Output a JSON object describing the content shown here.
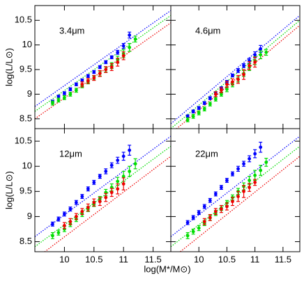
{
  "chart_data": [
    {
      "type": "scatter",
      "title": "3.4μm",
      "y_label": "log(L/L⊙)",
      "xlim": [
        9.5,
        11.8
      ],
      "ylim": [
        8.3,
        10.8
      ],
      "xticks": [
        10.0,
        10.5,
        11.0,
        11.5
      ],
      "yticks": [
        8.5,
        9.0,
        9.5,
        10.0,
        10.5
      ],
      "series": [
        {
          "color": "#0000ff",
          "x": [
            9.8,
            9.9,
            10.0,
            10.1,
            10.2,
            10.3,
            10.4,
            10.5,
            10.6,
            10.7,
            10.8,
            10.9,
            11.0,
            11.1
          ],
          "values": [
            8.85,
            8.95,
            9.02,
            9.1,
            9.2,
            9.28,
            9.37,
            9.45,
            9.55,
            9.65,
            9.75,
            9.85,
            9.98,
            10.2
          ],
          "errors": [
            0.03,
            0.03,
            0.03,
            0.03,
            0.03,
            0.03,
            0.03,
            0.03,
            0.03,
            0.03,
            0.03,
            0.04,
            0.05,
            0.06
          ]
        },
        {
          "color": "#00dd00",
          "x": [
            9.8,
            9.9,
            10.0,
            10.1,
            10.2,
            10.3,
            10.4,
            10.5,
            10.6,
            10.7,
            10.8,
            10.9,
            11.0,
            11.1,
            11.2
          ],
          "values": [
            8.82,
            8.88,
            8.93,
            9.0,
            9.08,
            9.17,
            9.25,
            9.33,
            9.42,
            9.5,
            9.58,
            9.7,
            9.82,
            9.95,
            10.12
          ],
          "errors": [
            0.04,
            0.04,
            0.04,
            0.04,
            0.04,
            0.04,
            0.04,
            0.04,
            0.05,
            0.05,
            0.06,
            0.07,
            0.08,
            0.08,
            0.06
          ]
        },
        {
          "color": "#ee0000",
          "x": [
            10.3,
            10.4,
            10.5,
            10.6,
            10.7,
            10.8,
            10.9,
            11.0
          ],
          "values": [
            9.2,
            9.27,
            9.33,
            9.42,
            9.5,
            9.55,
            9.65,
            9.78
          ],
          "errors": [
            0.05,
            0.05,
            0.05,
            0.06,
            0.06,
            0.07,
            0.08,
            0.08
          ]
        }
      ],
      "fits": [
        {
          "color": "#0000ff",
          "x": [
            9.5,
            11.8
          ],
          "values": [
            8.75,
            10.7
          ]
        },
        {
          "color": "#00dd00",
          "x": [
            9.5,
            11.8
          ],
          "values": [
            8.65,
            10.6
          ]
        },
        {
          "color": "#ee0000",
          "x": [
            9.5,
            11.8
          ],
          "values": [
            8.5,
            10.45
          ]
        }
      ]
    },
    {
      "type": "scatter",
      "title": "4.6μm",
      "xlim": [
        9.5,
        11.8
      ],
      "ylim": [
        8.3,
        10.8
      ],
      "xticks": [
        10.0,
        10.5,
        11.0,
        11.5
      ],
      "yticks": [
        8.5,
        9.0,
        9.5,
        10.0,
        10.5
      ],
      "series": [
        {
          "color": "#0000ff",
          "x": [
            9.8,
            9.9,
            10.0,
            10.1,
            10.2,
            10.3,
            10.4,
            10.5,
            10.6,
            10.7,
            10.8,
            10.9,
            11.0,
            11.1
          ],
          "values": [
            8.55,
            8.65,
            8.72,
            8.82,
            8.92,
            9.02,
            9.12,
            9.25,
            9.38,
            9.48,
            9.58,
            9.68,
            9.8,
            9.92
          ],
          "errors": [
            0.03,
            0.03,
            0.03,
            0.03,
            0.03,
            0.03,
            0.03,
            0.03,
            0.03,
            0.04,
            0.04,
            0.05,
            0.06,
            0.07
          ]
        },
        {
          "color": "#00dd00",
          "x": [
            9.8,
            9.9,
            10.0,
            10.1,
            10.2,
            10.3,
            10.4,
            10.5,
            10.6,
            10.7,
            10.8,
            10.9,
            11.0,
            11.1,
            11.2
          ],
          "values": [
            8.48,
            8.55,
            8.62,
            8.7,
            8.8,
            8.9,
            9.0,
            9.1,
            9.2,
            9.3,
            9.42,
            9.55,
            9.68,
            9.8,
            9.85
          ],
          "errors": [
            0.04,
            0.04,
            0.04,
            0.04,
            0.04,
            0.04,
            0.04,
            0.05,
            0.05,
            0.05,
            0.06,
            0.07,
            0.08,
            0.08,
            0.06
          ]
        },
        {
          "color": "#ee0000",
          "x": [
            10.3,
            10.4,
            10.5,
            10.6,
            10.7,
            10.8,
            10.9,
            11.0
          ],
          "values": [
            9.0,
            9.08,
            9.2,
            9.25,
            9.3,
            9.4,
            9.58,
            9.65
          ],
          "errors": [
            0.05,
            0.05,
            0.06,
            0.06,
            0.08,
            0.1,
            0.08,
            0.1
          ]
        }
      ],
      "fits": [
        {
          "color": "#0000ff",
          "x": [
            9.5,
            11.8
          ],
          "values": [
            8.4,
            10.6
          ]
        },
        {
          "color": "#00dd00",
          "x": [
            9.5,
            11.8
          ],
          "values": [
            8.3,
            10.5
          ]
        },
        {
          "color": "#ee0000",
          "x": [
            9.5,
            11.8
          ],
          "values": [
            8.2,
            10.4
          ]
        }
      ]
    },
    {
      "type": "scatter",
      "title": "12μm",
      "y_label": "log(L/L⊙)",
      "x_label": "log(M*/M⊙)",
      "xlim": [
        9.5,
        11.8
      ],
      "ylim": [
        8.3,
        10.75
      ],
      "xticks": [
        10.0,
        10.5,
        11.0,
        11.5
      ],
      "yticks": [
        8.5,
        9.0,
        9.5,
        10.0,
        10.5
      ],
      "series": [
        {
          "color": "#0000ff",
          "x": [
            9.8,
            9.9,
            10.0,
            10.1,
            10.2,
            10.3,
            10.4,
            10.5,
            10.6,
            10.7,
            10.8,
            10.9,
            11.0,
            11.1
          ],
          "values": [
            8.85,
            8.95,
            9.05,
            9.15,
            9.28,
            9.4,
            9.55,
            9.68,
            9.8,
            9.9,
            10.02,
            10.12,
            10.2,
            10.32
          ],
          "errors": [
            0.04,
            0.04,
            0.04,
            0.04,
            0.04,
            0.04,
            0.04,
            0.04,
            0.04,
            0.05,
            0.05,
            0.06,
            0.08,
            0.1
          ]
        },
        {
          "color": "#00dd00",
          "x": [
            9.8,
            9.9,
            10.0,
            10.1,
            10.2,
            10.3,
            10.4,
            10.5,
            10.6,
            10.7,
            10.8,
            10.9,
            11.0,
            11.1,
            11.2
          ],
          "values": [
            8.62,
            8.68,
            8.75,
            8.85,
            8.95,
            9.05,
            9.15,
            9.25,
            9.35,
            9.48,
            9.58,
            9.7,
            9.8,
            9.9,
            10.05
          ],
          "errors": [
            0.06,
            0.05,
            0.05,
            0.05,
            0.05,
            0.05,
            0.05,
            0.05,
            0.05,
            0.06,
            0.07,
            0.08,
            0.1,
            0.1,
            0.1
          ]
        },
        {
          "color": "#ee0000",
          "x": [
            10.0,
            10.1,
            10.2,
            10.3,
            10.4,
            10.5,
            10.6,
            10.7,
            10.8,
            10.9,
            11.0
          ],
          "values": [
            8.82,
            8.9,
            9.0,
            9.1,
            9.18,
            9.28,
            9.3,
            9.38,
            9.48,
            9.55,
            9.65
          ],
          "errors": [
            0.06,
            0.06,
            0.06,
            0.06,
            0.07,
            0.07,
            0.08,
            0.08,
            0.08,
            0.1,
            0.12
          ]
        }
      ],
      "fits": [
        {
          "color": "#0000ff",
          "x": [
            9.5,
            11.8
          ],
          "values": [
            8.6,
            10.6
          ]
        },
        {
          "color": "#00dd00",
          "x": [
            9.5,
            11.8
          ],
          "values": [
            8.4,
            10.4
          ]
        },
        {
          "color": "#ee0000",
          "x": [
            9.5,
            11.8
          ],
          "values": [
            8.15,
            10.2
          ]
        }
      ]
    },
    {
      "type": "scatter",
      "title": "22μm",
      "xlim": [
        9.5,
        11.8
      ],
      "ylim": [
        8.3,
        10.75
      ],
      "xticks": [
        10.0,
        10.5,
        11.0,
        11.5
      ],
      "yticks": [
        8.5,
        9.0,
        9.5,
        10.0,
        10.5
      ],
      "series": [
        {
          "color": "#0000ff",
          "x": [
            9.8,
            9.9,
            10.0,
            10.1,
            10.2,
            10.3,
            10.4,
            10.5,
            10.6,
            10.7,
            10.8,
            10.9,
            11.0,
            11.1
          ],
          "values": [
            8.88,
            8.98,
            9.08,
            9.2,
            9.32,
            9.45,
            9.58,
            9.72,
            9.85,
            9.95,
            10.05,
            10.15,
            10.25,
            10.38
          ],
          "errors": [
            0.04,
            0.04,
            0.04,
            0.04,
            0.04,
            0.04,
            0.04,
            0.04,
            0.04,
            0.05,
            0.05,
            0.06,
            0.08,
            0.1
          ]
        },
        {
          "color": "#00dd00",
          "x": [
            9.8,
            9.9,
            10.0,
            10.1,
            10.2,
            10.3,
            10.4,
            10.5,
            10.6,
            10.7,
            10.8,
            10.9,
            11.0,
            11.1,
            11.2
          ],
          "values": [
            8.62,
            8.7,
            8.77,
            8.87,
            8.97,
            9.07,
            9.17,
            9.27,
            9.38,
            9.5,
            9.6,
            9.72,
            9.82,
            9.92,
            10.08
          ],
          "errors": [
            0.06,
            0.05,
            0.05,
            0.05,
            0.05,
            0.05,
            0.05,
            0.05,
            0.05,
            0.06,
            0.07,
            0.08,
            0.1,
            0.1,
            0.08
          ]
        },
        {
          "color": "#ee0000",
          "x": [
            10.1,
            10.2,
            10.3,
            10.4,
            10.5,
            10.6,
            10.7,
            10.8,
            10.9,
            11.0
          ],
          "values": [
            8.9,
            8.98,
            9.1,
            9.15,
            9.2,
            9.3,
            9.4,
            9.5,
            9.58,
            9.68
          ],
          "errors": [
            0.06,
            0.06,
            0.06,
            0.07,
            0.07,
            0.08,
            0.1,
            0.12,
            0.08,
            0.06
          ]
        }
      ],
      "fits": [
        {
          "color": "#0000ff",
          "x": [
            9.5,
            11.8
          ],
          "values": [
            8.6,
            10.6
          ]
        },
        {
          "color": "#00dd00",
          "x": [
            9.5,
            11.8
          ],
          "values": [
            8.4,
            10.4
          ]
        },
        {
          "color": "#ee0000",
          "x": [
            9.5,
            11.8
          ],
          "values": [
            8.15,
            10.2
          ]
        }
      ]
    }
  ]
}
